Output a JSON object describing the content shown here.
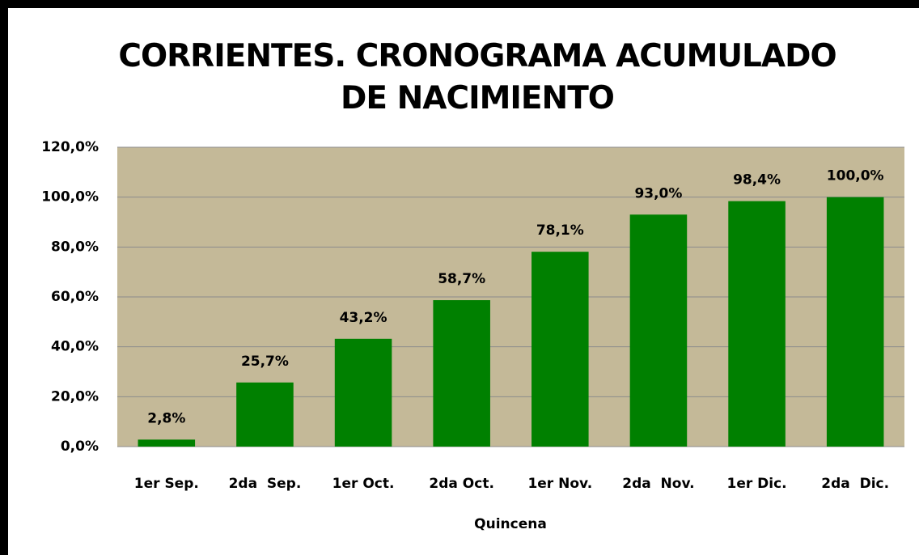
{
  "chart_data": {
    "type": "bar",
    "title": "CORRIENTES. CRONOGRAMA ACUMULADO DE NACIMIENTO",
    "x_label": "Quincena",
    "categories": [
      "1er Sep.",
      "2da  Sep.",
      "1er Oct.",
      "2da Oct.",
      "1er Nov.",
      "2da  Nov.",
      "1er Dic.",
      "2da  Dic."
    ],
    "values": [
      2.8,
      25.7,
      43.2,
      58.7,
      78.1,
      93.0,
      98.4,
      100.0
    ],
    "value_labels": [
      "2,8%",
      "25,7%",
      "43,2%",
      "58,7%",
      "78,1%",
      "93,0%",
      "98,4%",
      "100,0%"
    ],
    "color": "#008000",
    "ylim": [
      0,
      120
    ],
    "yticks": [
      {
        "value": 0,
        "label": "0,0%"
      },
      {
        "value": 20,
        "label": "20,0%"
      },
      {
        "value": 40,
        "label": "40,0%"
      },
      {
        "value": 60,
        "label": "60,0%"
      },
      {
        "value": 80,
        "label": "80,0%"
      },
      {
        "value": 100,
        "label": "100,0%"
      },
      {
        "value": 120,
        "label": "120,0%"
      }
    ],
    "grid": true
  }
}
